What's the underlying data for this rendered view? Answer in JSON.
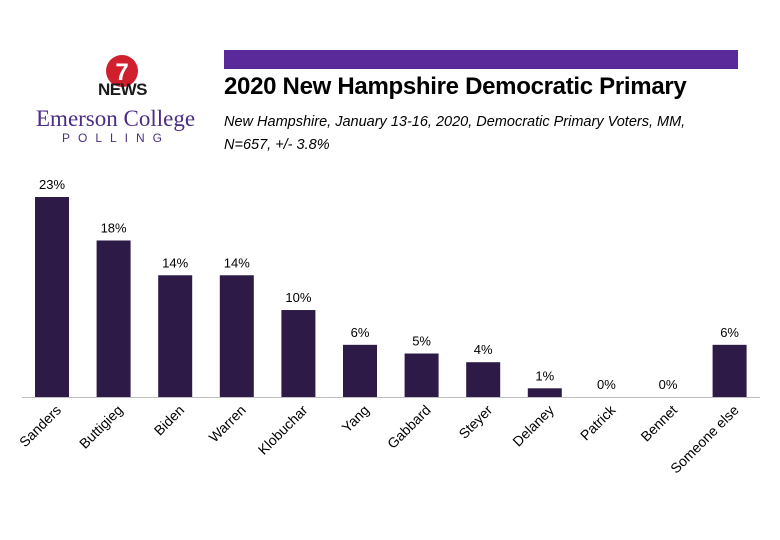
{
  "brand": {
    "news_badge_number": "7",
    "news_label": "NEWS",
    "college_name": "Emerson College",
    "polling_label": "POLLING",
    "accent_color": "#4b2e83",
    "badge_color": "#d0202e"
  },
  "header": {
    "bar_color": "#5b2a9a"
  },
  "chart_data": {
    "type": "bar",
    "title": "2020 New Hampshire Democratic Primary",
    "subtitle_line1": "New Hampshire, January 13-16, 2020, Democratic Primary Voters, MM,",
    "subtitle_line2": "N=657,  +/- 3.8%",
    "categories": [
      "Sanders",
      "Buttigieg",
      "Biden",
      "Warren",
      "Klobuchar",
      "Yang",
      "Gabbard",
      "Steyer",
      "Delaney",
      "Patrick",
      "Bennet",
      "Someone else"
    ],
    "values": [
      23,
      18,
      14,
      14,
      10,
      6,
      5,
      4,
      1,
      0,
      0,
      6
    ],
    "data_labels": [
      "23%",
      "18%",
      "14%",
      "14%",
      "10%",
      "6%",
      "5%",
      "4%",
      "1%",
      "0%",
      "0%",
      "6%"
    ],
    "bar_color": "#2e1a47",
    "ylim": [
      0,
      23
    ],
    "grid": false,
    "xlabel": "",
    "ylabel": ""
  }
}
